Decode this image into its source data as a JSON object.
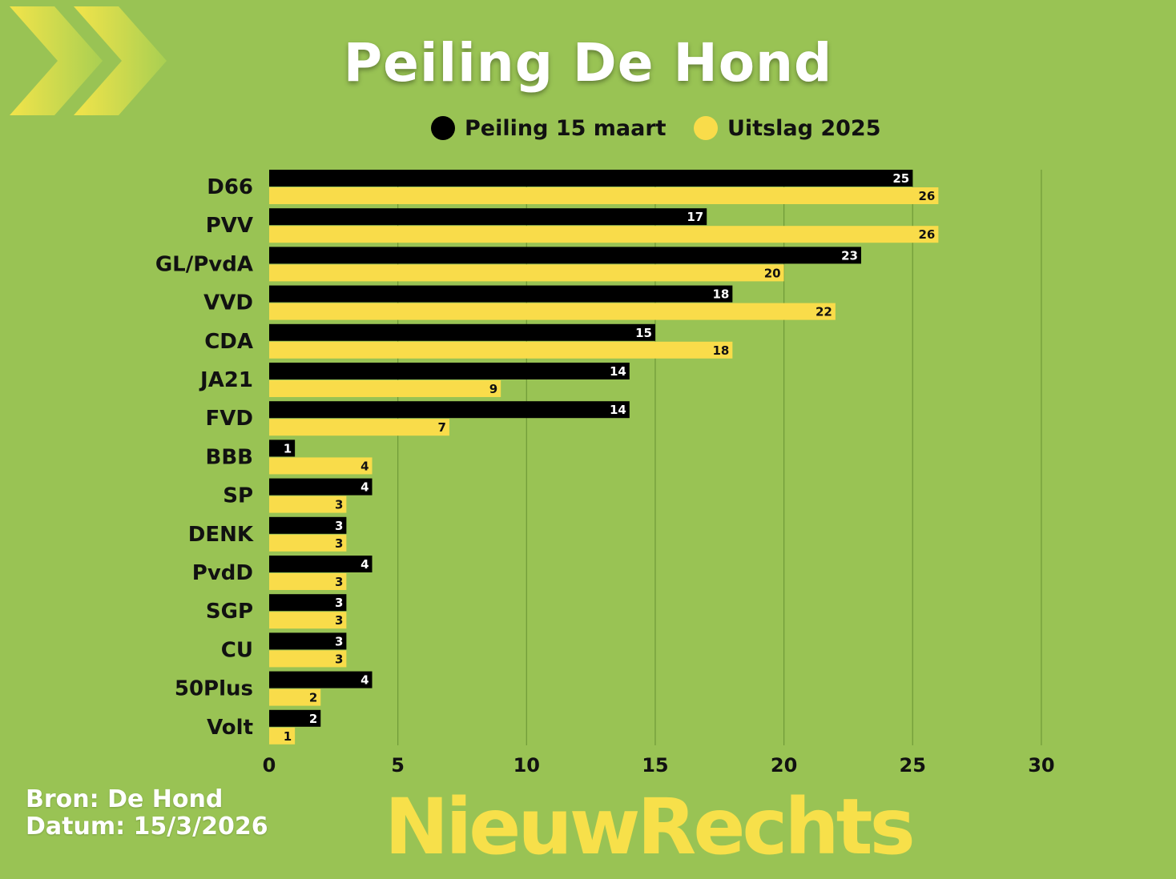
{
  "title": "Peiling De Hond",
  "legend": [
    {
      "label": "Peiling 15 maart",
      "color": "#000000"
    },
    {
      "label": "Uitslag 2025",
      "color": "#f9dc4a"
    }
  ],
  "source": {
    "line1": "Bron: De Hond",
    "line2": "Datum: 15/3/2026"
  },
  "logo": {
    "text": "NieuwRechts"
  },
  "colors": {
    "background": "#99c354",
    "poll": "#000000",
    "result": "#f9dc4a",
    "grid": "#6f9a38"
  },
  "chart_data": {
    "type": "bar",
    "orientation": "horizontal",
    "categories": [
      "D66",
      "PVV",
      "GL/PvdA",
      "VVD",
      "CDA",
      "JA21",
      "FVD",
      "BBB",
      "SP",
      "DENK",
      "PvdD",
      "SGP",
      "CU",
      "50Plus",
      "Volt"
    ],
    "series": [
      {
        "name": "Peiling 15 maart",
        "values": [
          25,
          17,
          23,
          18,
          15,
          14,
          14,
          1,
          4,
          3,
          4,
          3,
          3,
          4,
          2
        ]
      },
      {
        "name": "Uitslag 2025",
        "values": [
          26,
          26,
          20,
          22,
          18,
          9,
          7,
          4,
          3,
          3,
          3,
          3,
          3,
          2,
          1
        ]
      }
    ],
    "xlim": [
      0,
      30
    ],
    "xticks": [
      0,
      5,
      10,
      15,
      20,
      25,
      30
    ],
    "grid": true,
    "legend_position": "top"
  }
}
